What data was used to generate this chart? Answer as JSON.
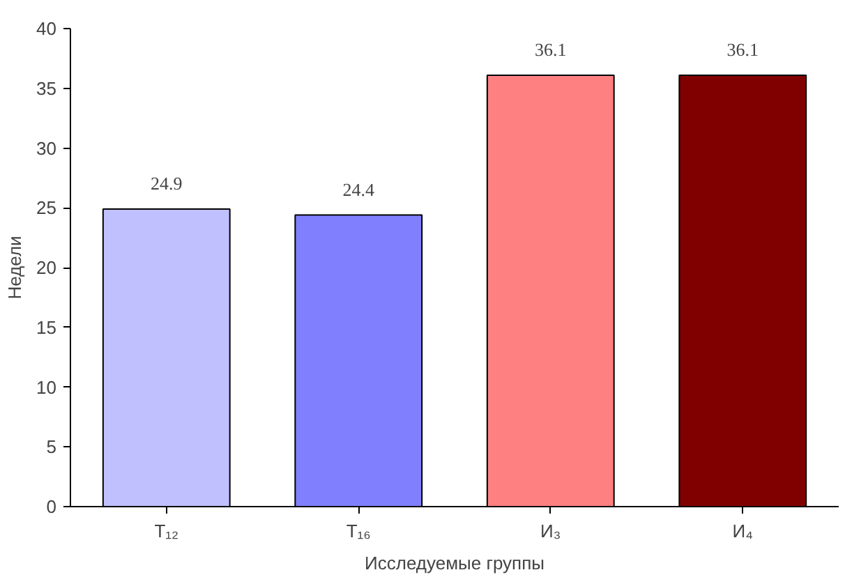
{
  "chart_data": {
    "type": "bar",
    "xlabel": "Исследуемые группы",
    "ylabel": "Недели",
    "categories": [
      "T₁₂",
      "T₁₆",
      "И₃",
      "И₄"
    ],
    "values": [
      24.9,
      24.4,
      36.1,
      36.1
    ],
    "colors": [
      "#c0c0ff",
      "#8080ff",
      "#ff8080",
      "#800000"
    ],
    "ylim": [
      0,
      40
    ],
    "yticks": [
      0,
      5,
      10,
      15,
      20,
      25,
      30,
      35,
      40
    ],
    "grid": false,
    "data_labels": true
  }
}
